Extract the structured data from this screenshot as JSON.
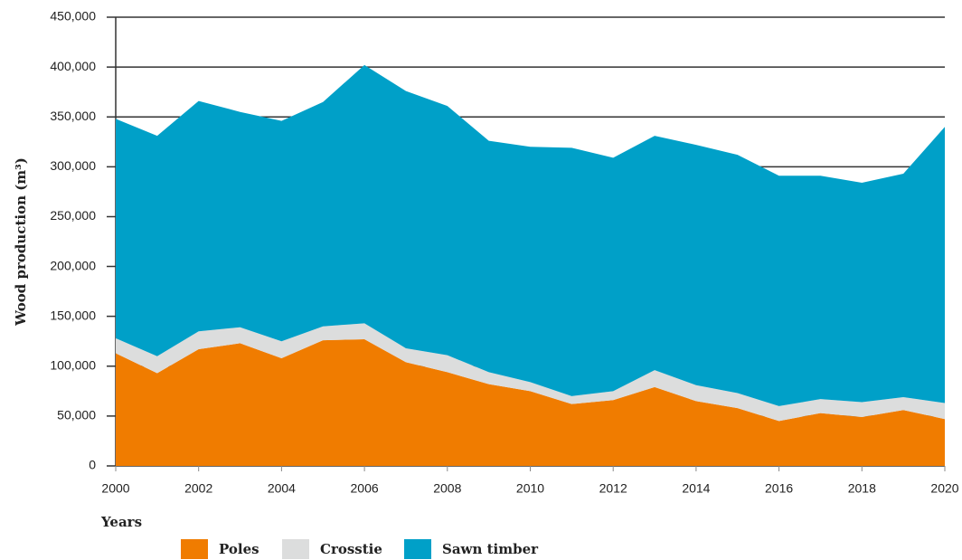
{
  "chart_data": {
    "type": "stacked_area",
    "x_label": "Years",
    "y_label": "Wood production (m³)",
    "x": [
      2000,
      2001,
      2002,
      2003,
      2004,
      2005,
      2006,
      2007,
      2008,
      2009,
      2010,
      2011,
      2012,
      2013,
      2014,
      2015,
      2016,
      2017,
      2018,
      2019,
      2020
    ],
    "series": [
      {
        "name": "Poles",
        "color": "#f07c00",
        "values": [
          113000,
          93000,
          117000,
          123000,
          108000,
          126000,
          127000,
          104000,
          94000,
          82000,
          75000,
          62000,
          66000,
          79000,
          65000,
          58000,
          45000,
          53000,
          49000,
          56000,
          47000
        ]
      },
      {
        "name": "Crosstie",
        "color": "#dcdddd",
        "values": [
          15000,
          17000,
          18000,
          16000,
          17000,
          14000,
          16000,
          14000,
          17000,
          12000,
          9000,
          8000,
          9000,
          17000,
          16000,
          15000,
          15000,
          14000,
          15000,
          13000,
          16000
        ]
      },
      {
        "name": "Sawn timber",
        "color": "#00a0c8",
        "values": [
          220000,
          221000,
          231000,
          216000,
          221000,
          225000,
          259000,
          258000,
          250000,
          232000,
          236000,
          249000,
          234000,
          235000,
          241000,
          239000,
          231000,
          224000,
          220000,
          224000,
          277000
        ]
      }
    ],
    "xlim": [
      2000,
      2020
    ],
    "xticks": [
      2000,
      2002,
      2004,
      2006,
      2008,
      2010,
      2012,
      2014,
      2016,
      2018,
      2020
    ],
    "ylim": [
      0,
      450000
    ],
    "yticks": [
      0,
      {
        "value": 50000,
        "label": "50,000"
      },
      {
        "value": 100000,
        "label": "100,000"
      },
      {
        "value": 150000,
        "label": "150,000"
      },
      {
        "value": 200000,
        "label": "200,000"
      },
      {
        "value": 250000,
        "label": "250,000"
      },
      {
        "value": 300000,
        "label": "300,000"
      },
      {
        "value": 350000,
        "label": "350,000"
      },
      {
        "value": 400000,
        "label": "400,000"
      },
      {
        "value": 450000,
        "label": "450,000"
      }
    ],
    "grid": true,
    "legend": "bottom"
  }
}
